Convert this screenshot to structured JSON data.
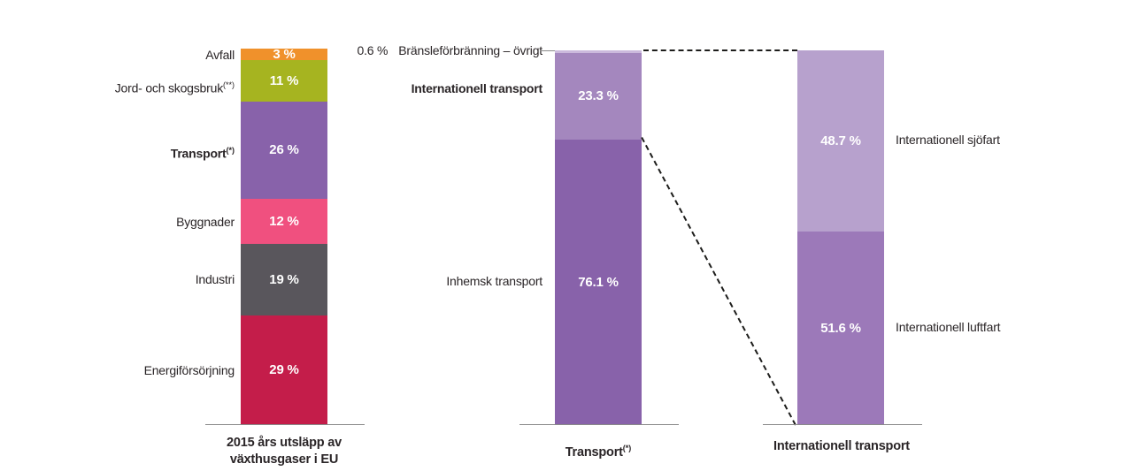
{
  "chart_data": {
    "type": "bar",
    "stacked": true,
    "orientation": "vertical",
    "unit": "%",
    "grid": false,
    "legend": "none",
    "connectors": {
      "leader_label_to_bar2_top": true,
      "dashed_bar2_top_to_bar3_top": true,
      "dashed_bar2_international_boundary_to_bar3_bottom": true
    },
    "charts": [
      {
        "id": "eu-emissions-2015",
        "axis_label": "2015 års utsläpp av växthusgaser i EU",
        "axis_label_line1": "2015 års utsläpp av",
        "axis_label_line2": "växthusgaser i EU",
        "axis_label_sup": "",
        "segments": [
          {
            "label": "Avfall",
            "sup": "",
            "value": 3,
            "display": "3 %",
            "color": "#F0912B"
          },
          {
            "label": "Jord- och skogsbruk",
            "sup": "(**)",
            "value": 11,
            "display": "11 %",
            "color": "#A6B420"
          },
          {
            "label": "Transport",
            "sup": "(*)",
            "value": 26,
            "display": "26 %",
            "color": "#8862AA"
          },
          {
            "label": "Byggnader",
            "sup": "",
            "value": 12,
            "display": "12 %",
            "color": "#F0507F"
          },
          {
            "label": "Industri",
            "sup": "",
            "value": 19,
            "display": "19 %",
            "color": "#59565C"
          },
          {
            "label": "Energiförsörjning",
            "sup": "",
            "value": 29,
            "display": "29 %",
            "color": "#C41D4A"
          }
        ]
      },
      {
        "id": "transport-breakdown",
        "axis_label": "Transport",
        "axis_label_sup": "(*)",
        "segments": [
          {
            "label": "Bränsleförbränning – övrigt",
            "sup": "",
            "value": 0.6,
            "display": "0.6 %",
            "color": "#CBB9DC"
          },
          {
            "label": "Internationell transport",
            "sup": "",
            "value": 23.3,
            "display": "23.3 %",
            "color": "#A487BE"
          },
          {
            "label": "Inhemsk transport",
            "sup": "",
            "value": 76.1,
            "display": "76.1 %",
            "color": "#8862AA"
          }
        ]
      },
      {
        "id": "international-transport-breakdown",
        "axis_label": "Internationell transport",
        "axis_label_sup": "",
        "segments": [
          {
            "label": "Internationell sjöfart",
            "sup": "",
            "value": 48.7,
            "display": "48.7 %",
            "color": "#B7A1CD"
          },
          {
            "label": "Internationell luftfart",
            "sup": "",
            "value": 51.6,
            "display": "51.6 %",
            "color": "#9C79B9"
          }
        ]
      }
    ]
  }
}
